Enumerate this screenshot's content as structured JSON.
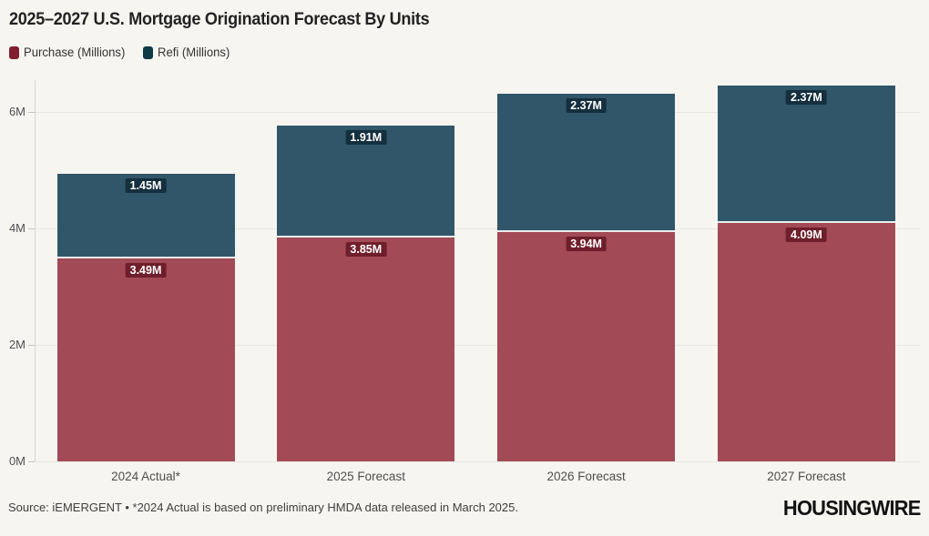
{
  "chart": {
    "title": "2025–2027 U.S. Mortgage Origination Forecast By Units",
    "source": "Source: iEMERGENT • *2024 Actual is based on preliminary HMDA data released in March 2025.",
    "logo": "HOUSINGWIRE"
  },
  "legend": [
    {
      "label": "Purchase (Millions)",
      "color": "#7e1e2e"
    },
    {
      "label": "Refi (Millions)",
      "color": "#0f3a48"
    }
  ],
  "chart_data": {
    "type": "bar",
    "stacked": true,
    "title": "2025–2027 U.S. Mortgage Origination Forecast By Units",
    "categories": [
      "2024 Actual*",
      "2025 Forecast",
      "2026 Forecast",
      "2027 Forecast"
    ],
    "series": [
      {
        "name": "Purchase (Millions)",
        "values": [
          3.49,
          3.85,
          3.94,
          4.09
        ],
        "labels": [
          "3.49M",
          "3.85M",
          "3.94M",
          "4.09M"
        ],
        "color": "#a24a55",
        "label_bg": "#6f1f2b"
      },
      {
        "name": "Refi (Millions)",
        "values": [
          1.45,
          1.91,
          2.37,
          2.37
        ],
        "labels": [
          "1.45M",
          "1.91M",
          "2.37M",
          "2.37M"
        ],
        "color": "#31566a",
        "label_bg": "#142f3d"
      }
    ],
    "yticks": [
      {
        "value": 0,
        "label": "0M"
      },
      {
        "value": 2,
        "label": "2M"
      },
      {
        "value": 4,
        "label": "4M"
      },
      {
        "value": 6,
        "label": "6M"
      }
    ],
    "ylim": [
      0,
      6.5
    ],
    "unit": "M",
    "grid": true,
    "legend_position": "top-left"
  }
}
